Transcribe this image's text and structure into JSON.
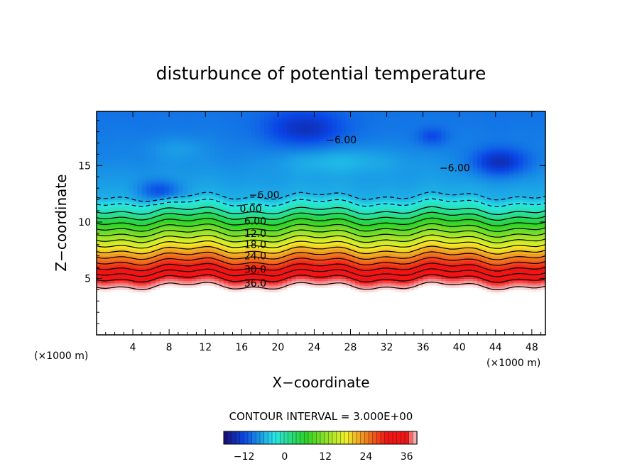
{
  "chart_data": {
    "type": "heatmap",
    "title": "disturbunce of potential temperature",
    "xlabel": "X−coordinate",
    "ylabel": "Z−coordinate",
    "x_unit_left": "(×1000 m)",
    "x_unit_right": "(×1000 m)",
    "xlim": [
      0,
      49.5
    ],
    "ylim": [
      0,
      19.8
    ],
    "x_ticks": [
      4,
      8,
      12,
      16,
      20,
      24,
      28,
      32,
      36,
      40,
      44,
      48
    ],
    "y_ticks": [
      5,
      10,
      15
    ],
    "contour_interval_text": "CONTOUR INTERVAL = 3.000E+00",
    "contour_interval": 3,
    "levels": [
      -6,
      -3,
      0,
      3,
      6,
      9,
      12,
      15,
      18,
      21,
      24,
      27,
      30,
      33,
      36,
      39
    ],
    "profile": [
      {
        "z": 0,
        "v": 45
      },
      {
        "z": 4,
        "v": 41
      },
      {
        "z": 4.5,
        "v": 38
      },
      {
        "z": 5,
        "v": 36
      },
      {
        "z": 6,
        "v": 30
      },
      {
        "z": 7,
        "v": 24
      },
      {
        "z": 8,
        "v": 18
      },
      {
        "z": 9,
        "v": 12
      },
      {
        "z": 10,
        "v": 6
      },
      {
        "z": 11,
        "v": 0
      },
      {
        "z": 11.7,
        "v": -3
      },
      {
        "z": 12.3,
        "v": -6
      },
      {
        "z": 13.5,
        "v": -7
      },
      {
        "z": 16,
        "v": -8.5
      },
      {
        "z": 19.8,
        "v": -9.5
      }
    ],
    "blobs": [
      {
        "x": 7,
        "z": 12.8,
        "rx": 2.2,
        "rz": 0.9,
        "dv": -5
      },
      {
        "x": 23,
        "z": 18.3,
        "rx": 4.2,
        "rz": 1.6,
        "dv": -5
      },
      {
        "x": 37,
        "z": 17.6,
        "rx": 1.6,
        "rz": 0.8,
        "dv": -3
      },
      {
        "x": 44.5,
        "z": 15.3,
        "rx": 3.0,
        "rz": 1.2,
        "dv": -6
      },
      {
        "x": 27,
        "z": 15.5,
        "rx": 7,
        "rz": 1.2,
        "dv": 2.5
      },
      {
        "x": 9,
        "z": 16.5,
        "rx": 3,
        "rz": 1.0,
        "dv": 1.5
      }
    ],
    "inline_labels": [
      {
        "text": "−6.00",
        "x": 27,
        "z": 17.3
      },
      {
        "text": "−6.00",
        "x": 39.5,
        "z": 14.8
      },
      {
        "text": "−6.00",
        "x": 18.5,
        "z": 12.4
      },
      {
        "text": "0.00",
        "x": 17,
        "z": 11.2
      },
      {
        "text": "6.00",
        "x": 17.5,
        "z": 10.1
      },
      {
        "text": "12.0",
        "x": 17.5,
        "z": 9.0
      },
      {
        "text": "18.0",
        "x": 17.5,
        "z": 8.0
      },
      {
        "text": "24.0",
        "x": 17.5,
        "z": 7.0
      },
      {
        "text": "30.0",
        "x": 17.5,
        "z": 5.8
      },
      {
        "text": "36.0",
        "x": 17.5,
        "z": 4.6
      }
    ],
    "colorbar": {
      "min": -18,
      "max": 39,
      "tick_values": [
        -12,
        0,
        12,
        24,
        36
      ],
      "tick_labels": [
        "−12",
        "0",
        "12",
        "24",
        "36"
      ]
    },
    "colors": {
      "low": "#1a0a6e",
      "blue": "#0a46e6",
      "cyan": "#28e6e6",
      "green": "#28d228",
      "yellow": "#f0f028",
      "red": "#f01414",
      "pink": "#f4a0a0",
      "high": "#ffffff"
    },
    "grid": false
  }
}
